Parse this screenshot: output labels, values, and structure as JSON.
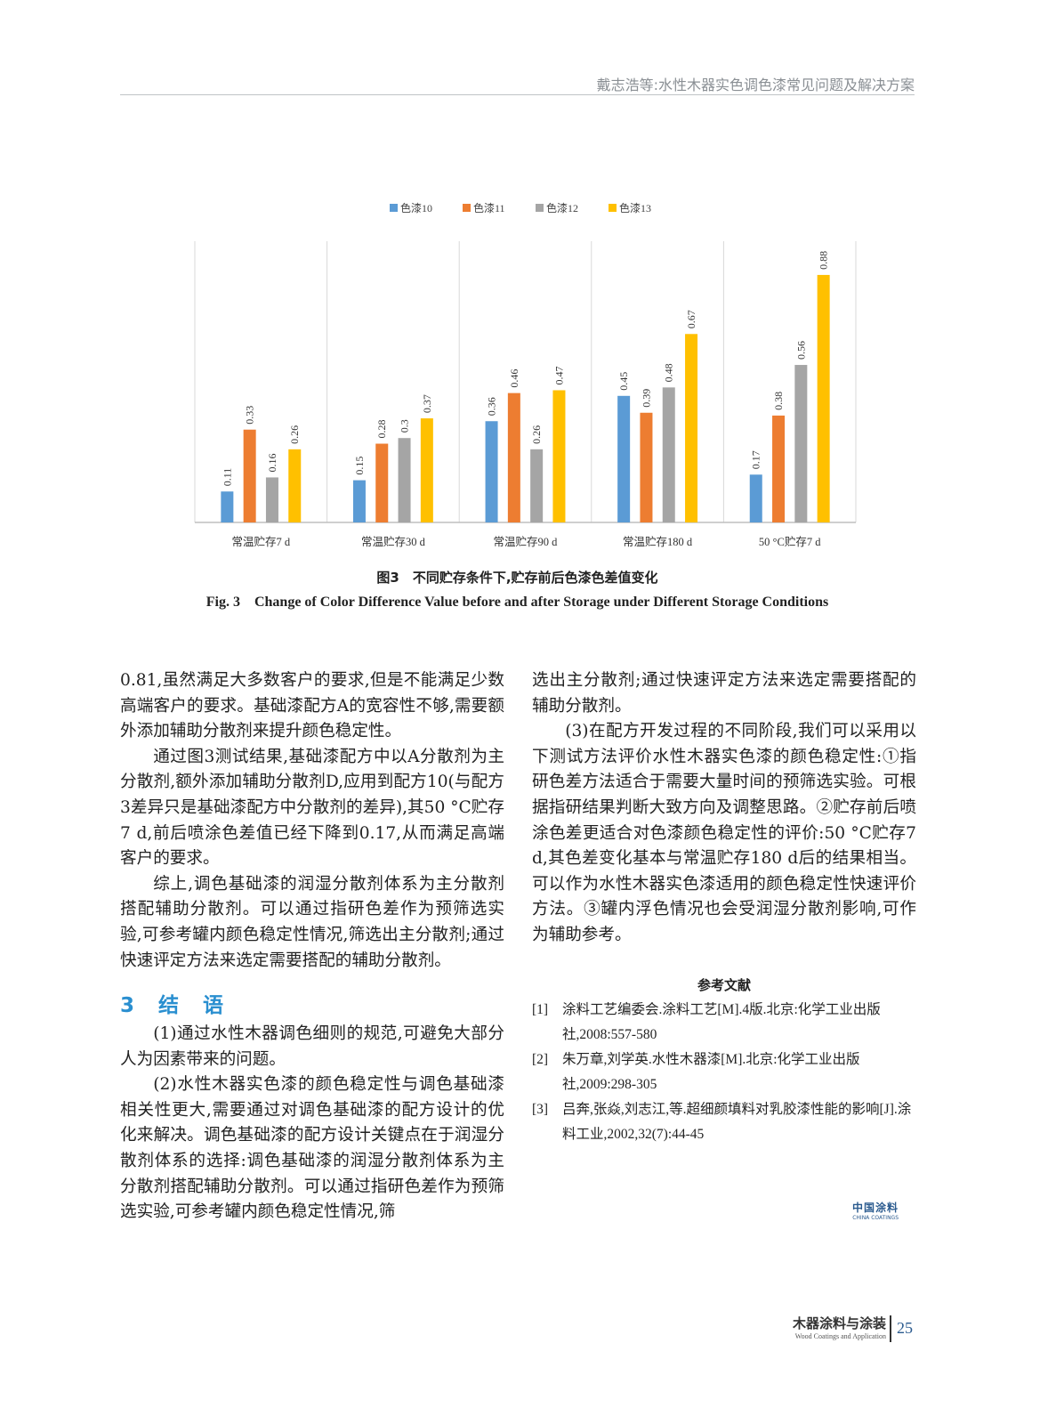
{
  "header": {
    "running_title": "戴志浩等:水性木器实色调色漆常见问题及解决方案"
  },
  "chart_data": {
    "type": "bar",
    "categories": [
      "常温贮存7 d",
      "常温贮存30 d",
      "常温贮存90 d",
      "常温贮存180 d",
      "50 °C贮存7 d"
    ],
    "series": [
      {
        "name": "色漆10",
        "color": "#5b9bd5",
        "values": [
          0.11,
          0.15,
          0.36,
          0.45,
          0.17
        ]
      },
      {
        "name": "色漆11",
        "color": "#ed7d31",
        "values": [
          0.33,
          0.28,
          0.46,
          0.39,
          0.38
        ]
      },
      {
        "name": "色漆12",
        "color": "#a5a5a5",
        "values": [
          0.16,
          0.3,
          0.26,
          0.48,
          0.56
        ]
      },
      {
        "name": "色漆13",
        "color": "#ffc000",
        "values": [
          0.26,
          0.37,
          0.47,
          0.67,
          0.88
        ]
      }
    ],
    "ylim": [
      0,
      1
    ],
    "legend": "top",
    "grid": "vertical category separators",
    "data_labels": true
  },
  "figure": {
    "caption_cn": "图3　不同贮存条件下,贮存前后色漆色差值变化",
    "caption_en": "Fig. 3　Change of Color Difference Value before and after Storage under Different Storage Conditions"
  },
  "body": {
    "left_paragraphs": [
      "0.81,虽然满足大多数客户的要求,但是不能满足少数高端客户的要求。基础漆配方A的宽容性不够,需要额外添加辅助分散剂来提升颜色稳定性。",
      "通过图3测试结果,基础漆配方中以A分散剂为主分散剂,额外添加辅助分散剂D,应用到配方10(与配方3差异只是基础漆配方中分散剂的差异),其50 °C贮存7 d,前后喷涂色差值已经下降到0.17,从而满足高端客户的要求。",
      "综上,调色基础漆的润湿分散剂体系为主分散剂搭配辅助分散剂。可以通过指研色差作为预筛选实验,可参考罐内颜色稳定性情况,筛选出主分散剂;通过快速评定方法来选定需要搭配的辅助分散剂。"
    ],
    "section_heading": "3　结　语",
    "section_paragraphs": [
      "(1)通过水性木器调色细则的规范,可避免大部分人为因素带来的问题。",
      "(2)水性木器实色漆的颜色稳定性与调色基础漆相关性更大,需要通过对调色基础漆的配方设计的优化来解决。调色基础漆的配方设计关键点在于润湿分散剂体系的选择:调色基础漆的润湿分散剂体系为主分散剂搭配辅助分散剂。可以通过指研色差作为预筛选实验,可参考罐内颜色稳定性情况,筛"
    ],
    "right_paragraphs": [
      "选出主分散剂;通过快速评定方法来选定需要搭配的辅助分散剂。",
      "(3)在配方开发过程的不同阶段,我们可以采用以下测试方法评价水性木器实色漆的颜色稳定性:①指研色差方法适合于需要大量时间的预筛选实验。可根据指研结果判断大致方向及调整思路。②贮存前后喷涂色差更适合对色漆颜色稳定性的评价:50 °C贮存7 d,其色差变化基本与常温贮存180 d后的结果相当。可以作为水性木器实色漆适用的颜色稳定性快速评价方法。③罐内浮色情况也会受润湿分散剂影响,可作为辅助参考。"
    ]
  },
  "references": {
    "title": "参考文献",
    "items": [
      {
        "num": "[1]",
        "text": "涂料工艺编委会.涂料工艺[M].4版.北京:化学工业出版社,2008:557-580"
      },
      {
        "num": "[2]",
        "text": "朱万章,刘学英.水性木器漆[M].北京:化学工业出版社,2009:298-305"
      },
      {
        "num": "[3]",
        "text": "吕奔,张焱,刘志江,等.超细颜填料对乳胶漆性能的影响[J].涂料工业,2002,32(7):44-45"
      }
    ]
  },
  "logo": {
    "cn": "中国涂料",
    "en": "CHINA COATINGS"
  },
  "footer": {
    "journal_cn": "木器涂料与涂装",
    "journal_en": "Wood Coatings and Application",
    "page_number": "25"
  }
}
